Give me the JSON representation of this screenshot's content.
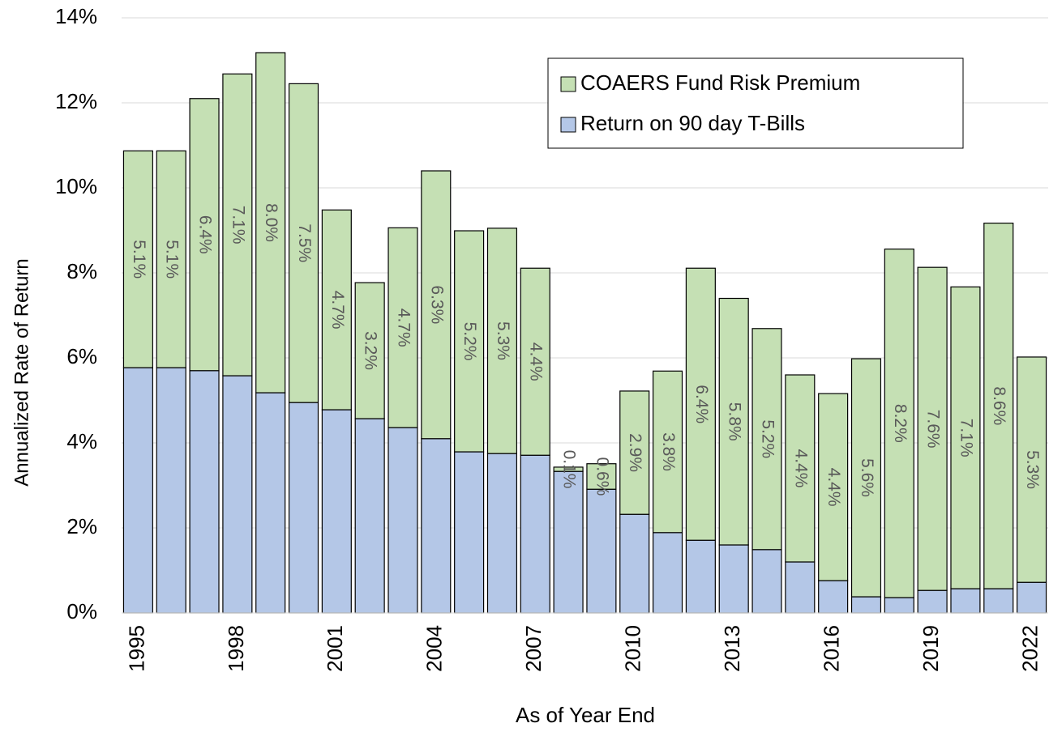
{
  "chart_data": {
    "type": "stacked_bar",
    "categories": [
      "1995",
      null,
      null,
      "1998",
      null,
      null,
      "2001",
      null,
      null,
      "2004",
      null,
      null,
      "2007",
      null,
      null,
      "2010",
      null,
      null,
      "2013",
      null,
      null,
      "2016",
      null,
      null,
      "2019",
      null,
      null,
      "2022"
    ],
    "series": [
      {
        "name": "Return on 90 day T-Bills",
        "color": "#b4c7e7",
        "values": [
          5.77,
          5.77,
          5.7,
          5.58,
          5.18,
          4.95,
          4.78,
          4.57,
          4.36,
          4.1,
          3.79,
          3.75,
          3.71,
          3.33,
          2.91,
          2.32,
          1.89,
          1.71,
          1.6,
          1.49,
          1.2,
          0.76,
          0.38,
          0.36,
          0.53,
          0.57,
          0.57,
          0.72
        ]
      },
      {
        "name": "COAERS Fund Risk Premium",
        "color": "#c5e0b4",
        "values": [
          5.1,
          5.1,
          6.4,
          7.1,
          8.0,
          7.5,
          4.7,
          3.2,
          4.7,
          6.3,
          5.2,
          5.3,
          4.4,
          0.1,
          0.6,
          2.9,
          3.8,
          6.4,
          5.8,
          5.2,
          4.4,
          4.4,
          5.6,
          8.2,
          7.6,
          7.1,
          8.6,
          5.3
        ],
        "value_labels": [
          "5.1%",
          "5.1%",
          "6.4%",
          "7.1%",
          "8.0%",
          "7.5%",
          "4.7%",
          "3.2%",
          "4.7%",
          "6.3%",
          "5.2%",
          "5.3%",
          "4.4%",
          "0.1%",
          "0.6%",
          "2.9%",
          "3.8%",
          "6.4%",
          "5.8%",
          "5.2%",
          "4.4%",
          "4.4%",
          "5.6%",
          "8.2%",
          "7.6%",
          "7.1%",
          "8.6%",
          "5.3%"
        ]
      }
    ],
    "ylim": [
      0,
      14
    ],
    "yticks": [
      {
        "value": 0,
        "label": "0%"
      },
      {
        "value": 2,
        "label": "2%"
      },
      {
        "value": 4,
        "label": "4%"
      },
      {
        "value": 6,
        "label": "6%"
      },
      {
        "value": 8,
        "label": "8%"
      },
      {
        "value": 10,
        "label": "10%"
      },
      {
        "value": 12,
        "label": "12%"
      },
      {
        "value": 14,
        "label": "14%"
      }
    ],
    "y_label": "Annualized Rate of Return",
    "x_label": "As of Year End",
    "grid": true,
    "legend": "top-right"
  }
}
